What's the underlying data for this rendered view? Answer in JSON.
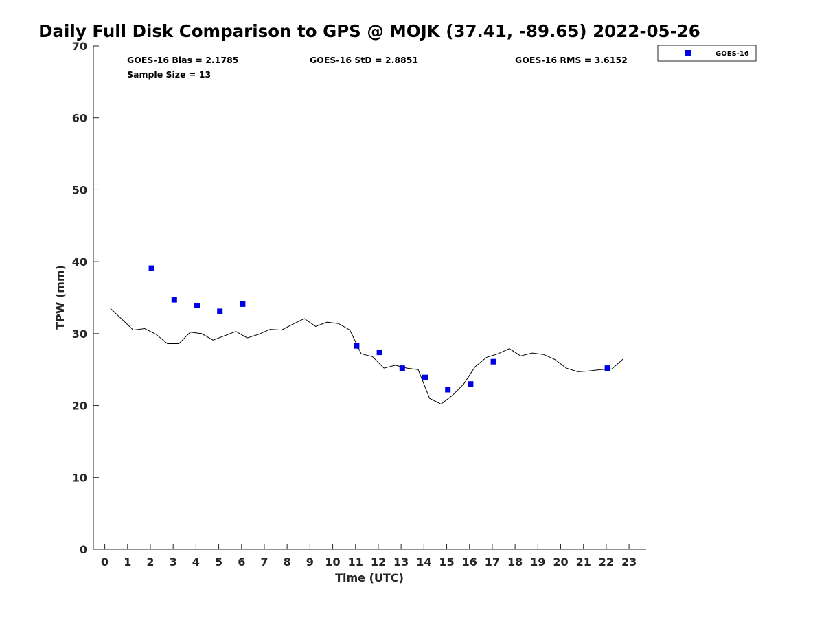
{
  "chart_data": {
    "type": "scatter",
    "title": "Daily Full Disk Comparison to GPS @ MOJK (37.41, -89.65) 2022-05-26",
    "xlabel": "Time (UTC)",
    "ylabel": "TPW (mm)",
    "xlim": [
      -0.5,
      23.75
    ],
    "ylim": [
      0,
      70
    ],
    "x_ticks": [
      0,
      1,
      2,
      3,
      4,
      5,
      6,
      7,
      8,
      9,
      10,
      11,
      12,
      13,
      14,
      15,
      16,
      17,
      18,
      19,
      20,
      21,
      22,
      23
    ],
    "y_ticks": [
      0,
      10,
      20,
      30,
      40,
      50,
      60,
      70
    ],
    "grid": false,
    "legend_position": "top-right outside",
    "stats": {
      "bias": "GOES-16 Bias = 2.1785",
      "std": "GOES-16 StD = 2.8851",
      "rms": "GOES-16 RMS = 3.6152",
      "sample": "Sample Size = 13"
    },
    "series": [
      {
        "name": "GOES-16",
        "kind": "scatter",
        "color": "#0000e6",
        "marker": "square",
        "points": [
          [
            2.05,
            39.1
          ],
          [
            3.05,
            34.7
          ],
          [
            4.05,
            33.9
          ],
          [
            5.05,
            33.1
          ],
          [
            6.05,
            34.1
          ],
          [
            11.05,
            28.3
          ],
          [
            12.05,
            27.4
          ],
          [
            13.05,
            25.2
          ],
          [
            14.05,
            23.9
          ],
          [
            15.05,
            22.2
          ],
          [
            16.05,
            23.0
          ],
          [
            17.05,
            26.1
          ],
          [
            22.05,
            25.2
          ]
        ]
      },
      {
        "kind": "line",
        "color": "#000000",
        "points": [
          [
            0.25,
            33.5
          ],
          [
            0.75,
            32.0
          ],
          [
            1.25,
            30.5
          ],
          [
            1.75,
            30.7
          ],
          [
            2.25,
            29.9
          ],
          [
            2.75,
            28.6
          ],
          [
            3.25,
            28.6
          ],
          [
            3.75,
            30.2
          ],
          [
            4.25,
            30.0
          ],
          [
            4.75,
            29.1
          ],
          [
            5.25,
            29.7
          ],
          [
            5.75,
            30.3
          ],
          [
            6.25,
            29.4
          ],
          [
            6.75,
            29.9
          ],
          [
            7.25,
            30.6
          ],
          [
            7.75,
            30.5
          ],
          [
            8.25,
            31.3
          ],
          [
            8.75,
            32.1
          ],
          [
            9.25,
            31.0
          ],
          [
            9.75,
            31.6
          ],
          [
            10.25,
            31.4
          ],
          [
            10.75,
            30.5
          ],
          [
            11.25,
            27.2
          ],
          [
            11.75,
            26.8
          ],
          [
            12.25,
            25.2
          ],
          [
            12.75,
            25.6
          ],
          [
            13.25,
            25.2
          ],
          [
            13.75,
            25.0
          ],
          [
            14.25,
            21.0
          ],
          [
            14.75,
            20.2
          ],
          [
            15.25,
            21.4
          ],
          [
            15.75,
            23.0
          ],
          [
            16.25,
            25.4
          ],
          [
            16.75,
            26.7
          ],
          [
            17.25,
            27.2
          ],
          [
            17.75,
            27.9
          ],
          [
            18.25,
            26.9
          ],
          [
            18.75,
            27.3
          ],
          [
            19.25,
            27.1
          ],
          [
            19.75,
            26.4
          ],
          [
            20.25,
            25.2
          ],
          [
            20.75,
            24.7
          ],
          [
            21.25,
            24.8
          ],
          [
            21.75,
            25.0
          ],
          [
            22.25,
            25.1
          ],
          [
            22.75,
            26.5
          ]
        ]
      }
    ]
  }
}
